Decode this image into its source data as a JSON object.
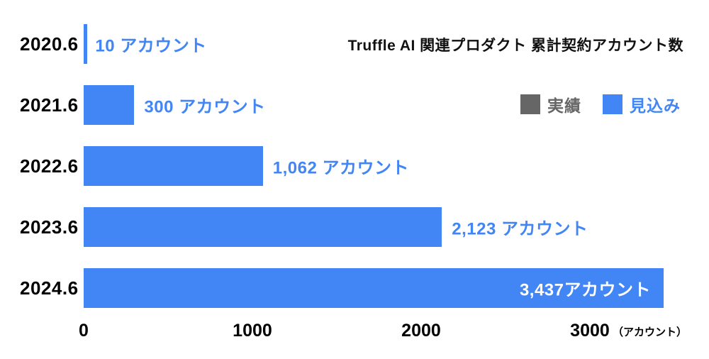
{
  "chart_data": {
    "type": "bar",
    "orientation": "horizontal",
    "title": "Truffle AI 関連プロダクト 累計契約アカウント数",
    "categories": [
      "2020.6",
      "2021.6",
      "2022.6",
      "2023.6",
      "2024.6"
    ],
    "values": [
      10,
      300,
      1062,
      2123,
      3437
    ],
    "value_labels": [
      "10 アカウント",
      "300 アカウント",
      "1,062 アカウント",
      "2,123 アカウント",
      "3,437アカウント"
    ],
    "label_positions": [
      "outside",
      "outside",
      "outside",
      "outside",
      "inside"
    ],
    "x_ticks": [
      0,
      1000,
      2000,
      3000
    ],
    "x_unit": "（アカウント）",
    "xlim": [
      0,
      3437
    ],
    "grid": false,
    "legend_position": "top-right",
    "legend": [
      {
        "label": "実績",
        "color": "#666666"
      },
      {
        "label": "見込み",
        "color": "#4285F4"
      }
    ],
    "bar_color": "#4285F4",
    "label_color": "#4285F4"
  }
}
